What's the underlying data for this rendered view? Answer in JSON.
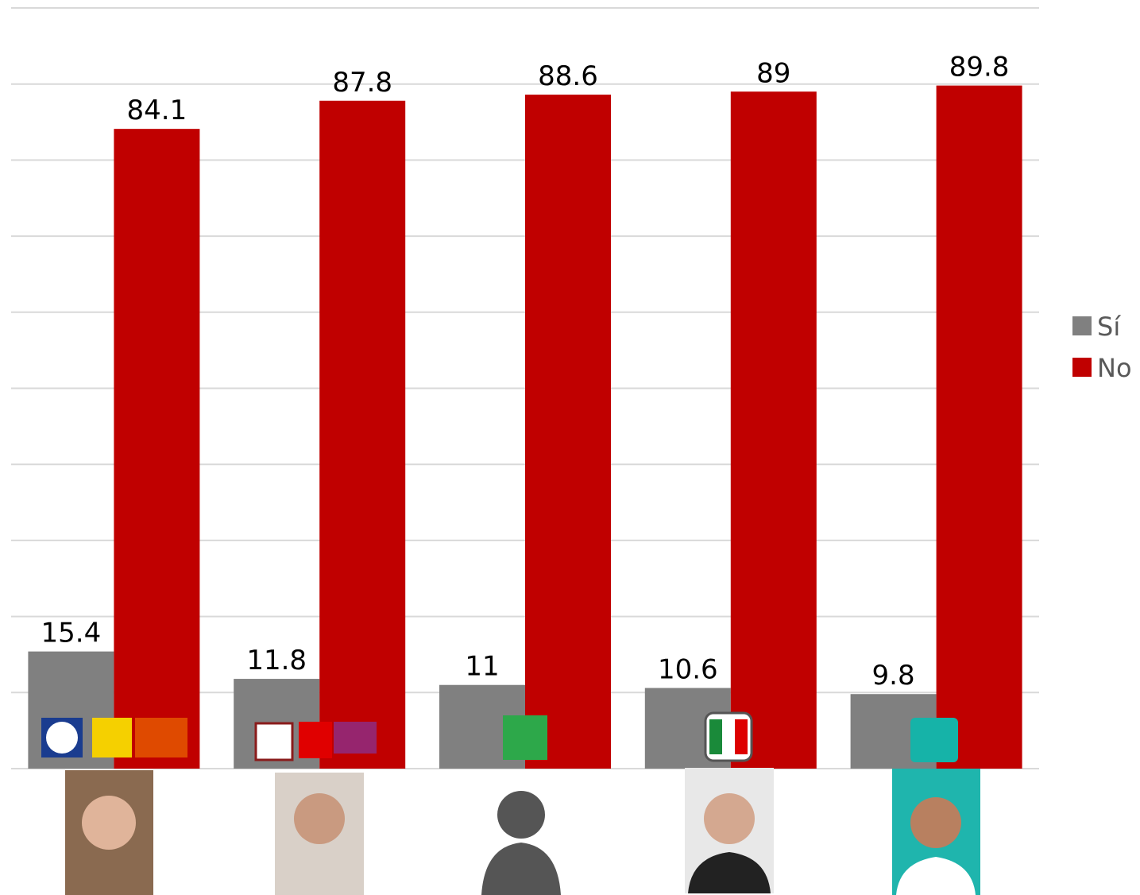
{
  "chart_data": {
    "type": "bar",
    "categories": [
      null,
      null,
      null,
      null,
      null
    ],
    "series": [
      {
        "name": "Sí",
        "color": "#808080",
        "values": [
          15.4,
          11.8,
          11,
          10.6,
          9.8
        ]
      },
      {
        "name": "No",
        "color": "#c00000",
        "values": [
          84.1,
          87.8,
          88.6,
          89,
          89.8
        ]
      }
    ],
    "ylim": [
      0,
      100
    ],
    "yticks": [
      0,
      10,
      20,
      30,
      40,
      50,
      60,
      70,
      80,
      90,
      100
    ],
    "grid": true,
    "legend": "right"
  }
}
